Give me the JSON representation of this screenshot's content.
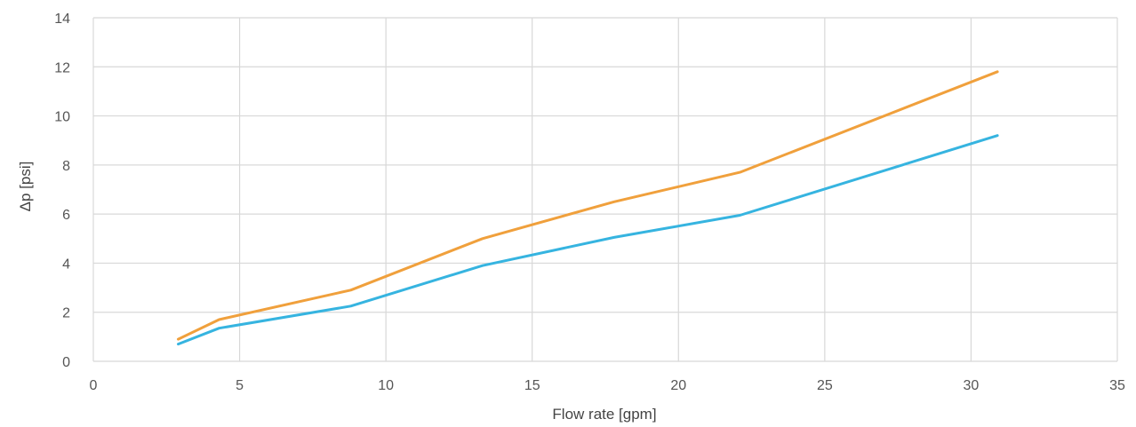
{
  "chart_data": {
    "type": "line",
    "title": "",
    "xlabel": "Flow rate [gpm]",
    "ylabel": "Δp [psi]",
    "xlim": [
      0,
      35
    ],
    "ylim": [
      0,
      14
    ],
    "xticks": [
      0,
      5,
      10,
      15,
      20,
      25,
      30,
      35
    ],
    "yticks": [
      0,
      2,
      4,
      6,
      8,
      10,
      12,
      14
    ],
    "grid": true,
    "legend": "none",
    "series": [
      {
        "color": "#F0A03C",
        "x": [
          2.9,
          4.3,
          8.8,
          13.3,
          17.8,
          22.1,
          30.9
        ],
        "y": [
          0.9,
          1.7,
          2.9,
          5.0,
          6.5,
          7.7,
          11.8
        ]
      },
      {
        "color": "#36B4E0",
        "x": [
          2.9,
          4.3,
          8.8,
          13.3,
          17.8,
          22.1,
          30.9
        ],
        "y": [
          0.7,
          1.35,
          2.25,
          3.9,
          5.05,
          5.95,
          9.2
        ]
      }
    ]
  }
}
